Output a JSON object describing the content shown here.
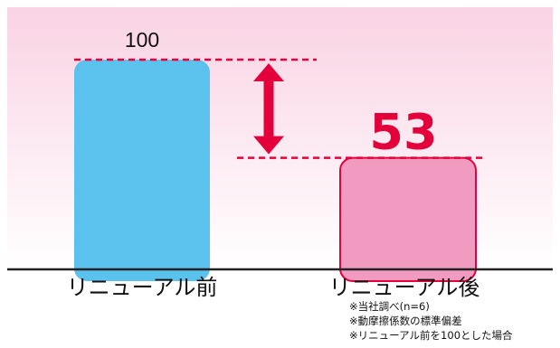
{
  "chart_data": {
    "type": "bar",
    "categories": [
      "リニューアル前",
      "リニューアル後"
    ],
    "values": [
      100,
      53
    ],
    "value_labels": [
      "100",
      "53"
    ],
    "ylim": [
      0,
      100
    ],
    "grid": false,
    "colors": {
      "bar_before": "#5BC2EE",
      "bar_after_fill": "#F29BC1",
      "bar_after_stroke": "#E4003A",
      "accent": "#E4003A",
      "axis": "#222222",
      "background_top": "#F9D3E3",
      "background_bottom": "#FFFFFF"
    },
    "annotation": {
      "type": "double-arrow",
      "from_value": 100,
      "to_value": 53
    }
  },
  "notes": [
    "※当社調べ(n=6)",
    "※動摩擦係数の標準偏差",
    "※リニューアル前を100とした場合"
  ]
}
